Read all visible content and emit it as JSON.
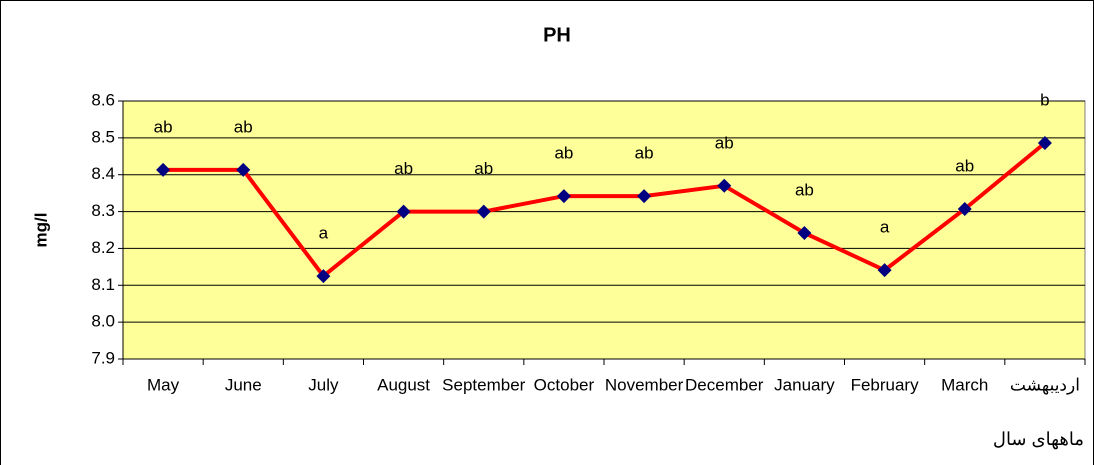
{
  "chart_data": {
    "type": "line",
    "title": "PH",
    "y_label": "mg/l",
    "x_label": "ماههای سال",
    "categories": [
      "May",
      "June",
      "July",
      "August",
      "September",
      "October",
      "November",
      "December",
      "January",
      "February",
      "March",
      "اردیبهشت"
    ],
    "series": [
      {
        "name": "PH",
        "color": "#ff0000",
        "marker_color": "#000080",
        "values": [
          8.413,
          8.413,
          8.125,
          8.3,
          8.3,
          8.342,
          8.342,
          8.37,
          8.242,
          8.141,
          8.307,
          8.486
        ],
        "value_labels": [
          "ab",
          "ab",
          "a",
          "ab",
          "ab",
          "ab",
          "ab",
          "ab",
          "ab",
          "a",
          "ab",
          "b"
        ]
      }
    ],
    "ylim": [
      7.9,
      8.6
    ],
    "yticks": [
      7.9,
      {
        "value": 8,
        "label": "8.0"
      },
      8.1,
      8.2,
      8.3,
      8.4,
      8.5,
      8.6
    ],
    "grid": true,
    "plot_background": "#ffff99"
  }
}
